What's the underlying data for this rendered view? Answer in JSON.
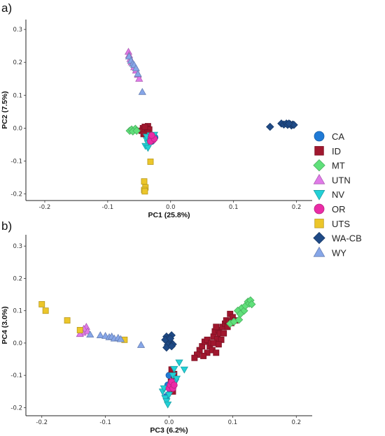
{
  "legend": [
    {
      "name": "CA",
      "color": "#1f7ad6",
      "shape": "circle"
    },
    {
      "name": "ID",
      "color": "#a0172e",
      "shape": "square"
    },
    {
      "name": "MT",
      "color": "#5fe07a",
      "shape": "diamond"
    },
    {
      "name": "UTN",
      "color": "#e07ae8",
      "shape": "triangle-up"
    },
    {
      "name": "NV",
      "color": "#22d0d6",
      "shape": "triangle-down"
    },
    {
      "name": "OR",
      "color": "#ea2ca6",
      "shape": "circle"
    },
    {
      "name": "UTS",
      "color": "#ecc62a",
      "shape": "square"
    },
    {
      "name": "WA-CB",
      "color": "#1f4a86",
      "shape": "diamond"
    },
    {
      "name": "WY",
      "color": "#86a6e8",
      "shape": "triangle-up"
    }
  ],
  "chart_data": [
    {
      "type": "scatter",
      "panel_label": "a)",
      "xlabel": "PC1 (25.8%)",
      "ylabel": "PC2 (7.5%)",
      "xlim": [
        -0.23,
        0.225
      ],
      "ylim": [
        -0.22,
        0.33
      ],
      "xticks": [
        -0.2,
        -0.1,
        0.0,
        0.1,
        0.2
      ],
      "xtick_labels": [
        "-0.2",
        "-0.1",
        "0.0",
        "0.1",
        "0.2"
      ],
      "yticks": [
        -0.2,
        -0.1,
        0.0,
        0.1,
        0.2,
        0.3
      ],
      "ytick_labels": [
        "-0.2",
        "-0.1",
        "0.0",
        "0.1",
        "0.2",
        "0.3"
      ],
      "grid": false,
      "series": [
        {
          "name": "CA",
          "points": [
            [
              -0.028,
              -0.03
            ],
            [
              -0.032,
              -0.02
            ],
            [
              -0.03,
              -0.04
            ],
            [
              -0.036,
              -0.034
            ],
            [
              -0.025,
              -0.028
            ],
            [
              -0.034,
              -0.026
            ]
          ]
        },
        {
          "name": "ID",
          "points": [
            [
              -0.044,
              0.0
            ],
            [
              -0.04,
              -0.006
            ],
            [
              -0.036,
              0.006
            ],
            [
              -0.042,
              -0.012
            ],
            [
              -0.038,
              -0.002
            ],
            [
              -0.046,
              -0.008
            ],
            [
              -0.034,
              -0.004
            ],
            [
              -0.041,
              0.004
            ],
            [
              -0.037,
              -0.014
            ],
            [
              -0.043,
              -0.018
            ]
          ]
        },
        {
          "name": "MT",
          "points": [
            [
              -0.065,
              -0.008
            ],
            [
              -0.062,
              -0.004
            ],
            [
              -0.058,
              -0.006
            ],
            [
              -0.056,
              -0.002
            ],
            [
              -0.06,
              -0.01
            ],
            [
              -0.054,
              -0.008
            ]
          ]
        },
        {
          "name": "UTN",
          "points": [
            [
              -0.067,
              0.232
            ],
            [
              -0.066,
              0.222
            ],
            [
              -0.064,
              0.21
            ],
            [
              -0.062,
              0.2
            ],
            [
              -0.058,
              0.185
            ],
            [
              -0.055,
              0.175
            ],
            [
              -0.052,
              0.162
            ],
            [
              -0.05,
              0.15
            ]
          ]
        },
        {
          "name": "NV",
          "points": [
            [
              -0.038,
              -0.036
            ],
            [
              -0.036,
              -0.046
            ],
            [
              -0.04,
              -0.054
            ],
            [
              -0.034,
              -0.04
            ],
            [
              -0.03,
              -0.032
            ],
            [
              -0.038,
              -0.026
            ],
            [
              -0.032,
              -0.022
            ],
            [
              -0.026,
              -0.02
            ],
            [
              -0.028,
              -0.03
            ],
            [
              -0.036,
              -0.06
            ]
          ]
        },
        {
          "name": "OR",
          "points": [
            [
              -0.031,
              -0.028
            ],
            [
              -0.028,
              -0.036
            ],
            [
              -0.032,
              -0.04
            ],
            [
              -0.026,
              -0.032
            ],
            [
              -0.03,
              -0.022
            ]
          ]
        },
        {
          "name": "UTS",
          "points": [
            [
              -0.032,
              -0.102
            ],
            [
              -0.042,
              -0.162
            ],
            [
              -0.04,
              -0.18
            ],
            [
              -0.042,
              -0.188
            ],
            [
              -0.041,
              -0.192
            ]
          ]
        },
        {
          "name": "WA-CB",
          "points": [
            [
              0.158,
              0.004
            ],
            [
              0.176,
              0.014
            ],
            [
              0.18,
              0.011
            ],
            [
              0.184,
              0.014
            ],
            [
              0.186,
              0.01
            ],
            [
              0.19,
              0.012
            ],
            [
              0.192,
              0.008
            ],
            [
              0.194,
              0.011
            ],
            [
              0.196,
              0.01
            ],
            [
              0.188,
              0.014
            ]
          ]
        },
        {
          "name": "WY",
          "points": [
            [
              -0.066,
              0.218
            ],
            [
              -0.063,
              0.205
            ],
            [
              -0.06,
              0.196
            ],
            [
              -0.058,
              0.192
            ],
            [
              -0.055,
              0.182
            ],
            [
              -0.052,
              0.165
            ],
            [
              -0.045,
              0.11
            ]
          ]
        }
      ]
    },
    {
      "type": "scatter",
      "panel_label": "b)",
      "xlabel": "PC3 (6.2%)",
      "ylabel": "PC4 (3.0%)",
      "xlim": [
        -0.225,
        0.225
      ],
      "ylim": [
        -0.225,
        0.335
      ],
      "xticks": [
        -0.2,
        -0.1,
        0.0,
        0.1,
        0.2
      ],
      "xtick_labels": [
        "-0.2",
        "-0.1",
        "0.0",
        "0.1",
        "0.2"
      ],
      "yticks": [
        -0.2,
        -0.1,
        0.0,
        0.1,
        0.2,
        0.3
      ],
      "ytick_labels": [
        "-0.2",
        "-0.1",
        "0.0",
        "0.1",
        "0.2",
        "0.3"
      ],
      "grid": false,
      "series": [
        {
          "name": "CA",
          "points": [
            [
              -0.002,
              -0.13
            ],
            [
              0.002,
              -0.15
            ],
            [
              0.004,
              -0.14
            ],
            [
              -0.004,
              -0.165
            ],
            [
              0.006,
              -0.12
            ],
            [
              0.0,
              -0.1
            ]
          ]
        },
        {
          "name": "ID",
          "points": [
            [
              0.048,
              -0.022
            ],
            [
              0.052,
              -0.01
            ],
            [
              0.056,
              0.004
            ],
            [
              0.06,
              0.01
            ],
            [
              0.06,
              -0.03
            ],
            [
              0.064,
              -0.01
            ],
            [
              0.066,
              0.0
            ],
            [
              0.068,
              -0.022
            ],
            [
              0.07,
              0.02
            ],
            [
              0.072,
              0.036
            ],
            [
              0.074,
              -0.03
            ],
            [
              0.076,
              0.012
            ],
            [
              0.078,
              0.04
            ],
            [
              0.08,
              0.03
            ],
            [
              0.082,
              0.01
            ],
            [
              0.084,
              0.05
            ],
            [
              0.086,
              0.03
            ],
            [
              0.088,
              0.06
            ],
            [
              0.09,
              0.07
            ],
            [
              0.092,
              0.05
            ],
            [
              0.094,
              0.066
            ],
            [
              0.096,
              0.09
            ],
            [
              0.098,
              0.062
            ],
            [
              0.1,
              0.08
            ],
            [
              0.104,
              0.07
            ],
            [
              0.112,
              0.1
            ],
            [
              0.074,
              0.05
            ],
            [
              0.07,
              0.0
            ],
            [
              0.078,
              -0.004
            ],
            [
              0.054,
              -0.04
            ],
            [
              0.044,
              -0.036
            ],
            [
              0.04,
              -0.046
            ],
            [
              0.003,
              -0.12
            ],
            [
              0.008,
              -0.096
            ],
            [
              0.004,
              -0.082
            ],
            [
              0.008,
              -0.11
            ],
            [
              0.006,
              -0.15
            ]
          ]
        },
        {
          "name": "MT",
          "points": [
            [
              0.096,
              0.06
            ],
            [
              0.102,
              0.066
            ],
            [
              0.11,
              0.072
            ],
            [
              0.114,
              0.108
            ],
            [
              0.118,
              0.1
            ],
            [
              0.12,
              0.115
            ],
            [
              0.124,
              0.128
            ],
            [
              0.126,
              0.122
            ],
            [
              0.128,
              0.132
            ],
            [
              0.13,
              0.12
            ],
            [
              0.108,
              0.1
            ],
            [
              0.112,
              0.09
            ]
          ]
        },
        {
          "name": "UTN",
          "points": [
            [
              -0.13,
              0.05
            ],
            [
              -0.134,
              0.044
            ],
            [
              -0.128,
              0.036
            ],
            [
              -0.136,
              0.032
            ],
            [
              -0.14,
              0.028
            ]
          ]
        },
        {
          "name": "NV",
          "points": [
            [
              -0.01,
              -0.15
            ],
            [
              -0.006,
              -0.17
            ],
            [
              -0.004,
              -0.18
            ],
            [
              -0.002,
              -0.19
            ],
            [
              0.0,
              -0.16
            ],
            [
              0.002,
              -0.14
            ],
            [
              0.004,
              -0.13
            ],
            [
              0.006,
              -0.1
            ],
            [
              0.008,
              -0.08
            ],
            [
              -0.008,
              -0.14
            ],
            [
              0.01,
              -0.12
            ],
            [
              0.012,
              -0.11
            ],
            [
              0.024,
              -0.082
            ],
            [
              0.016,
              -0.06
            ]
          ]
        },
        {
          "name": "OR",
          "points": [
            [
              0.0,
              -0.14
            ],
            [
              0.002,
              -0.13
            ],
            [
              0.004,
              -0.12
            ],
            [
              0.006,
              -0.14
            ],
            [
              0.008,
              -0.13
            ]
          ]
        },
        {
          "name": "UTS",
          "points": [
            [
              -0.2,
              0.12
            ],
            [
              -0.194,
              0.1
            ],
            [
              -0.16,
              0.07
            ],
            [
              -0.14,
              0.04
            ],
            [
              -0.07,
              0.01
            ]
          ]
        },
        {
          "name": "WA-CB",
          "points": [
            [
              -0.004,
              0.02
            ],
            [
              0.0,
              0.016
            ],
            [
              0.004,
              0.024
            ],
            [
              0.002,
              0.004
            ],
            [
              -0.002,
              -0.006
            ],
            [
              -0.006,
              0.01
            ],
            [
              0.006,
              -0.004
            ],
            [
              0.002,
              0.014
            ],
            [
              -0.004,
              -0.014
            ],
            [
              0.004,
              -0.01
            ]
          ]
        },
        {
          "name": "WY",
          "points": [
            [
              -0.124,
              0.026
            ],
            [
              -0.108,
              0.024
            ],
            [
              -0.1,
              0.022
            ],
            [
              -0.094,
              0.018
            ],
            [
              -0.09,
              0.02
            ],
            [
              -0.086,
              0.014
            ],
            [
              -0.08,
              0.016
            ],
            [
              -0.076,
              0.012
            ],
            [
              -0.044,
              -0.006
            ]
          ]
        }
      ]
    }
  ]
}
